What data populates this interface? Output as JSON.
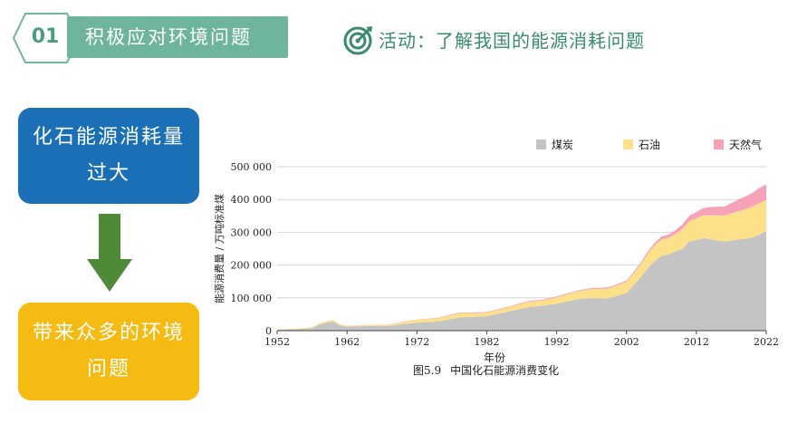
{
  "header": {
    "number": "01",
    "title": "积极应对环境问题",
    "activity_title": "活动：了解我国的能源消耗问题",
    "activity_icon": "target-icon",
    "accent_color": "#6fb59c"
  },
  "flow": {
    "box_top": {
      "line1": "化石能源消耗量",
      "line2": "过大",
      "color": "#1a6fb6"
    },
    "arrow_icon": "down-arrow-icon",
    "box_bottom": {
      "line1": "带来众多的环境",
      "line2": "问题",
      "color": "#f5bb12"
    }
  },
  "caption": {
    "figure": "图5.9",
    "text": "中国化石能源消费变化"
  },
  "chart_data": {
    "type": "area",
    "stacked": true,
    "xlabel": "年份",
    "ylabel": "能源消费量 / 万吨标准煤",
    "xlim": [
      1952,
      2022
    ],
    "ylim": [
      0,
      500000
    ],
    "xticks": [
      "1952",
      "1962",
      "1972",
      "1982",
      "1992",
      "2002",
      "2012",
      "2022"
    ],
    "yticks": [
      "0",
      "100 000",
      "200 000",
      "300 000",
      "400 000",
      "500 000"
    ],
    "grid": "horizontal",
    "legend_position": "top-right",
    "x": [
      1952,
      1955,
      1957,
      1958,
      1959,
      1960,
      1961,
      1962,
      1965,
      1968,
      1970,
      1972,
      1975,
      1978,
      1980,
      1982,
      1985,
      1988,
      1990,
      1992,
      1995,
      1997,
      1999,
      2000,
      2002,
      2003,
      2004,
      2005,
      2006,
      2007,
      2008,
      2009,
      2010,
      2011,
      2012,
      2013,
      2014,
      2015,
      2016,
      2017,
      2018,
      2019,
      2020,
      2021,
      2022
    ],
    "series": [
      {
        "name": "煤炭",
        "color": "#c4c4c4",
        "values": [
          3000,
          5000,
          8000,
          18000,
          24000,
          28000,
          16000,
          12000,
          14000,
          14000,
          20000,
          24000,
          28000,
          40000,
          42000,
          44000,
          58000,
          72000,
          76000,
          82000,
          96000,
          99000,
          98000,
          102000,
          115000,
          138000,
          162000,
          190000,
          212000,
          228000,
          232000,
          242000,
          250000,
          272000,
          276000,
          282000,
          279000,
          274000,
          272000,
          275000,
          278000,
          280000,
          284000,
          293000,
          304000
        ]
      },
      {
        "name": "石油",
        "color": "#fde08a",
        "values": [
          1000,
          1500,
          2000,
          3000,
          3500,
          4000,
          3000,
          2500,
          3000,
          4000,
          6000,
          9000,
          10000,
          13000,
          12000,
          11000,
          13000,
          16000,
          16000,
          20000,
          24000,
          28000,
          30000,
          31000,
          34000,
          36000,
          40000,
          44000,
          48000,
          50000,
          51000,
          53000,
          60000,
          62000,
          67000,
          70000,
          73000,
          78000,
          79000,
          83000,
          86000,
          90000,
          94000,
          96000,
          95000
        ]
      },
      {
        "name": "天然气",
        "color": "#f6a2b8",
        "values": [
          100,
          150,
          200,
          300,
          400,
          500,
          400,
          400,
          500,
          600,
          800,
          1000,
          1500,
          2000,
          2000,
          2000,
          2000,
          2500,
          2500,
          2600,
          2700,
          3000,
          3500,
          3500,
          4000,
          4500,
          5000,
          6000,
          7000,
          9000,
          10000,
          11000,
          14000,
          17000,
          19000,
          22000,
          25000,
          26000,
          27000,
          31000,
          36000,
          39000,
          42000,
          46000,
          47000
        ]
      }
    ]
  }
}
